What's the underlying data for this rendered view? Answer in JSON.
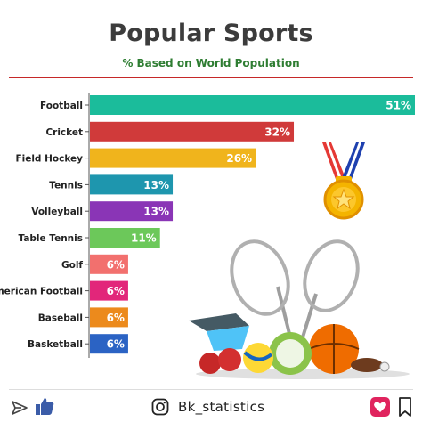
{
  "header": {
    "title": "Popular Sports",
    "subtitle": "% Based on World Population"
  },
  "chart_data": {
    "type": "bar",
    "orientation": "horizontal",
    "title": "Popular Sports",
    "subtitle": "% Based on World Population",
    "categories": [
      "Football",
      "Cricket",
      "Field Hockey",
      "Tennis",
      "Volleyball",
      "Table Tennis",
      "Golf",
      "American Football",
      "Baseball",
      "Basketball"
    ],
    "values": [
      51,
      32,
      26,
      13,
      13,
      11,
      6,
      6,
      6,
      6
    ],
    "value_labels": [
      "51%",
      "32%",
      "26%",
      "13%",
      "13%",
      "11%",
      "6%",
      "6%",
      "6%",
      "6%"
    ],
    "colors": [
      "#1bbc9b",
      "#d03a3a",
      "#f0b41c",
      "#1e96ae",
      "#8a35b6",
      "#6cc85a",
      "#f2706e",
      "#e2267a",
      "#ec8a1c",
      "#2b63c4"
    ],
    "xlim": [
      0,
      51
    ],
    "grid": false,
    "legend": "none"
  },
  "footer": {
    "handle": "Bk_statistics"
  },
  "icons": [
    "share-icon",
    "like-icon",
    "instagram-icon",
    "heart-icon",
    "bookmark-icon",
    "medal-icon",
    "sports-equipment-illustration"
  ]
}
